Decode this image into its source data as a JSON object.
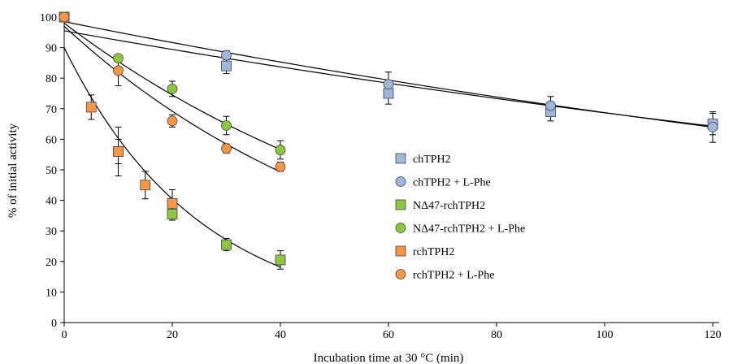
{
  "chart_data": {
    "type": "scatter",
    "xlabel": "Incubation time at 30 °C (min)",
    "ylabel": "% of initial activity",
    "xlim": [
      0,
      120
    ],
    "ylim": [
      0,
      100
    ],
    "xticks": [
      0,
      20,
      40,
      60,
      80,
      100,
      120
    ],
    "yticks": [
      0,
      10,
      20,
      30,
      40,
      50,
      60,
      70,
      80,
      90,
      100
    ],
    "grid": false,
    "legend_position": "right",
    "series": [
      {
        "name": "chTPH2",
        "marker": "square",
        "color": "#9db7dd",
        "x": [
          0,
          30,
          60,
          90,
          120
        ],
        "y": [
          100,
          84,
          75,
          69,
          65
        ],
        "err": [
          0,
          2.5,
          3.5,
          3.0,
          3.5
        ],
        "fit": {
          "a": 98.5,
          "k": 0.0036
        }
      },
      {
        "name": "chTPH2 + L-Phe",
        "marker": "circle",
        "color": "#9db7dd",
        "x": [
          0,
          30,
          60,
          90,
          120
        ],
        "y": [
          100,
          87.5,
          78,
          71,
          64
        ],
        "err": [
          0,
          1.5,
          4.0,
          3.0,
          5.0
        ],
        "fit": {
          "a": 95.5,
          "k": 0.0033
        }
      },
      {
        "name": "NΔ47-rchTPH2",
        "marker": "square",
        "color": "#8dc63f",
        "x": [
          0,
          10,
          20,
          30,
          40
        ],
        "y": [
          100,
          56,
          35.5,
          25.5,
          20.5
        ],
        "err": [
          0,
          4.0,
          2.0,
          2.0,
          3.0
        ],
        "fit": {
          "a": 90,
          "k": 0.04
        }
      },
      {
        "name": "NΔ47-rchTPH2 + L-Phe",
        "marker": "circle",
        "color": "#8dc63f",
        "x": [
          0,
          10,
          20,
          30,
          40
        ],
        "y": [
          100,
          86.5,
          76.5,
          64.5,
          56.5
        ],
        "err": [
          0,
          1.0,
          2.5,
          3.0,
          3.0
        ],
        "fit": {
          "a": 98,
          "k": 0.0137
        }
      },
      {
        "name": "rchTPH2",
        "marker": "square",
        "color": "#f79646",
        "x": [
          0,
          5,
          10,
          15,
          20
        ],
        "y": [
          100,
          70.5,
          56,
          45,
          39
        ],
        "err": [
          0,
          4.0,
          8.0,
          4.5,
          4.5
        ],
        "fit": null
      },
      {
        "name": "rchTPH2 + L-Phe",
        "marker": "circle",
        "color": "#f79646",
        "x": [
          0,
          10,
          20,
          30,
          40
        ],
        "y": [
          100,
          82.5,
          66,
          57,
          51
        ],
        "err": [
          0,
          5.0,
          2.0,
          1.5,
          1.5
        ],
        "fit": {
          "a": 97,
          "k": 0.0169
        }
      }
    ]
  }
}
